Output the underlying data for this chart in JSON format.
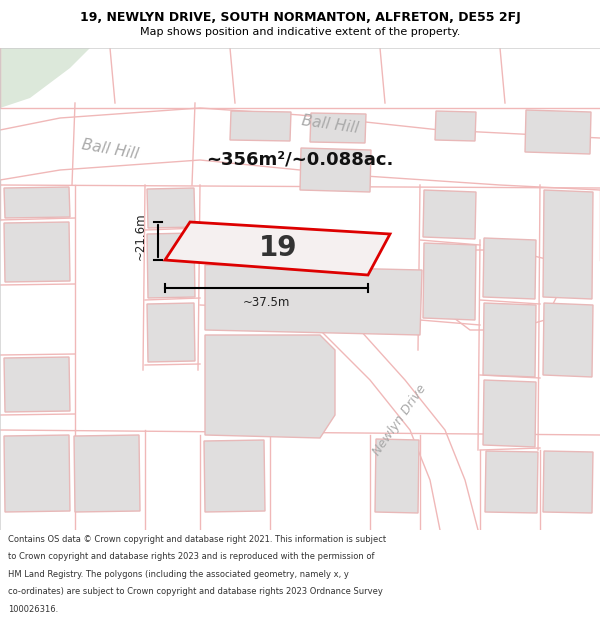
{
  "title_line1": "19, NEWLYN DRIVE, SOUTH NORMANTON, ALFRETON, DE55 2FJ",
  "title_line2": "Map shows position and indicative extent of the property.",
  "footer_lines": [
    "Contains OS data © Crown copyright and database right 2021. This information is subject",
    "to Crown copyright and database rights 2023 and is reproduced with the permission of",
    "HM Land Registry. The polygons (including the associated geometry, namely x, y",
    "co-ordinates) are subject to Crown copyright and database rights 2023 Ordnance Survey",
    "100026316."
  ],
  "area_label": "~356m²/~0.088ac.",
  "number_label": "19",
  "dim_width": "~37.5m",
  "dim_height": "~21.6m",
  "road_label_ball_hill_lower": "Ball Hill",
  "road_label_ball_hill_upper": "Ball Hill",
  "road_label_newlyn": "Newlyn Drive",
  "map_bg": "#ffffff",
  "map_border_color": "#cccccc",
  "plot_fill": "#f5f0f0",
  "plot_stroke": "#dd0000",
  "plot_stroke_lw": 2.0,
  "building_fill": "#e0dede",
  "building_stroke": "#e8b8b8",
  "building_stroke_lw": 1.0,
  "road_line_color": "#f0b8b8",
  "road_line_lw": 1.0,
  "road_fill_color": "#ffffff",
  "green_fill": "#dce8da",
  "road_label_color": "#aaaaaa",
  "title_color": "#000000",
  "footer_color": "#333333",
  "dim_color": "#222222",
  "area_label_color": "#111111",
  "number_color": "#333333"
}
